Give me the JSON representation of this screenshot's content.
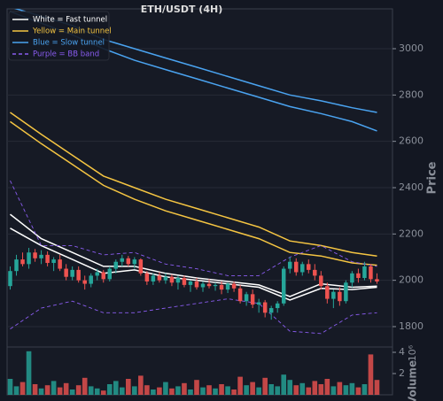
{
  "chart_data": [
    {
      "type": "candlestick",
      "title": "ETH/USDT (4H)",
      "ylabel": "Price",
      "xlim": [
        -0.5,
        61.5
      ],
      "ylim": [
        1712,
        3172
      ],
      "yticks": [
        1800,
        2000,
        2200,
        2400,
        2600,
        2800,
        3000
      ],
      "grid": true,
      "up_color": "#26a69a",
      "down_color": "#ef5350",
      "legend_position": "upper left",
      "open": [
        1975,
        2040,
        2090,
        2070,
        2120,
        2095,
        2110,
        2075,
        2090,
        2050,
        2015,
        2045,
        2000,
        1985,
        2020,
        2035,
        2005,
        2050,
        2080,
        2095,
        2070,
        2090,
        2030,
        1995,
        2020,
        2000,
        2015,
        1990,
        2010,
        1980,
        1995,
        1970,
        1985,
        1975,
        1980,
        1960,
        1985,
        1965,
        1910,
        1940,
        1895,
        1905,
        1860,
        1880,
        1900,
        2050,
        2080,
        2035,
        2070,
        2045,
        2020,
        1975,
        1920,
        1950,
        1910,
        1990,
        2030,
        2010,
        2060,
        2005
      ],
      "high": [
        2060,
        2110,
        2120,
        2140,
        2135,
        2130,
        2125,
        2100,
        2110,
        2070,
        2060,
        2060,
        2020,
        2030,
        2050,
        2045,
        2060,
        2090,
        2110,
        2105,
        2100,
        2095,
        2040,
        2030,
        2035,
        2030,
        2025,
        2020,
        2020,
        2000,
        2010,
        1995,
        2005,
        1990,
        1995,
        1990,
        1995,
        1980,
        1950,
        1960,
        1920,
        1915,
        1890,
        1910,
        2060,
        2100,
        2095,
        2080,
        2090,
        2070,
        2040,
        1990,
        1960,
        1970,
        2000,
        2040,
        2050,
        2080,
        2070,
        2030
      ],
      "low": [
        1960,
        2020,
        2060,
        2050,
        2080,
        2070,
        2060,
        2040,
        2040,
        2000,
        2000,
        1990,
        1960,
        1970,
        2000,
        1990,
        1995,
        2030,
        2060,
        2060,
        2050,
        2020,
        1980,
        1980,
        1990,
        1985,
        1975,
        1960,
        1970,
        1950,
        1960,
        1950,
        1965,
        1955,
        1940,
        1945,
        1950,
        1900,
        1890,
        1880,
        1860,
        1840,
        1830,
        1860,
        1890,
        2030,
        2020,
        2020,
        2030,
        2000,
        1960,
        1900,
        1880,
        1890,
        1900,
        1970,
        1990,
        2000,
        1990,
        1985
      ],
      "close": [
        2040,
        2090,
        2070,
        2120,
        2095,
        2110,
        2075,
        2090,
        2050,
        2015,
        2045,
        2000,
        1985,
        2020,
        2035,
        2005,
        2050,
        2080,
        2095,
        2070,
        2090,
        2030,
        1995,
        2020,
        2000,
        2015,
        1990,
        2010,
        1980,
        1995,
        1970,
        1985,
        1975,
        1980,
        1960,
        1985,
        1965,
        1910,
        1940,
        1895,
        1905,
        1860,
        1880,
        1900,
        2050,
        2080,
        2035,
        2070,
        2045,
        2020,
        1975,
        1920,
        1950,
        1910,
        1990,
        2030,
        2010,
        2060,
        2005,
        1995
      ],
      "line_x": [
        0,
        5,
        10,
        15,
        20,
        25,
        30,
        35,
        40,
        45,
        50,
        55,
        59
      ],
      "bands": [
        {
          "name": "White = Fast tunnel",
          "color": "#ffffff",
          "dashed": false,
          "upper": [
            2285,
            2180,
            2120,
            2060,
            2060,
            2030,
            2010,
            1995,
            1980,
            1930,
            1985,
            1970,
            1975
          ],
          "lower": [
            2225,
            2150,
            2090,
            2030,
            2045,
            2015,
            2000,
            1985,
            1970,
            1915,
            1965,
            1960,
            1970
          ]
        },
        {
          "name": "Yellow = Main tunnel",
          "color": "#f5c542",
          "dashed": false,
          "upper": [
            2725,
            2630,
            2540,
            2450,
            2400,
            2350,
            2310,
            2270,
            2230,
            2170,
            2150,
            2120,
            2105
          ],
          "lower": [
            2685,
            2590,
            2500,
            2410,
            2350,
            2300,
            2260,
            2220,
            2180,
            2120,
            2105,
            2075,
            2065
          ]
        },
        {
          "name": "Blue = Slow tunnel",
          "color": "#4aa3f0",
          "dashed": false,
          "upper": [
            3180,
            3140,
            3100,
            3040,
            3000,
            2960,
            2920,
            2880,
            2840,
            2800,
            2775,
            2745,
            2725
          ],
          "lower": [
            3160,
            3110,
            3060,
            3000,
            2950,
            2910,
            2870,
            2830,
            2790,
            2750,
            2720,
            2685,
            2645
          ]
        },
        {
          "name": "Purple = BB band",
          "color": "#8a5cf0",
          "dashed": true,
          "upper": [
            2430,
            2150,
            2150,
            2110,
            2120,
            2070,
            2050,
            2020,
            2020,
            2100,
            2150,
            2080,
            2060
          ],
          "lower": [
            1790,
            1880,
            1910,
            1860,
            1860,
            1880,
            1900,
            1920,
            1900,
            1780,
            1770,
            1850,
            1860
          ]
        }
      ]
    },
    {
      "type": "bar",
      "ylabel": "Volume",
      "offset_label": "10⁶",
      "xlim": [
        -0.5,
        61.5
      ],
      "ylim": [
        0,
        4.5
      ],
      "yticks": [
        2,
        4
      ],
      "values": [
        1.5,
        0.8,
        1.2,
        4.1,
        1.0,
        0.6,
        0.9,
        1.3,
        0.7,
        1.1,
        0.5,
        0.9,
        1.6,
        0.8,
        0.6,
        0.4,
        1.0,
        1.3,
        0.7,
        1.5,
        0.8,
        1.8,
        0.9,
        0.5,
        0.7,
        1.2,
        0.6,
        0.8,
        1.1,
        0.5,
        1.4,
        0.7,
        0.9,
        0.6,
        1.0,
        0.8,
        0.5,
        1.7,
        0.9,
        1.2,
        0.7,
        1.6,
        1.0,
        0.8,
        1.9,
        1.4,
        0.9,
        1.1,
        0.7,
        1.3,
        1.0,
        1.5,
        0.8,
        1.2,
        0.9,
        1.1,
        0.7,
        1.0,
        3.8,
        1.4
      ]
    }
  ]
}
